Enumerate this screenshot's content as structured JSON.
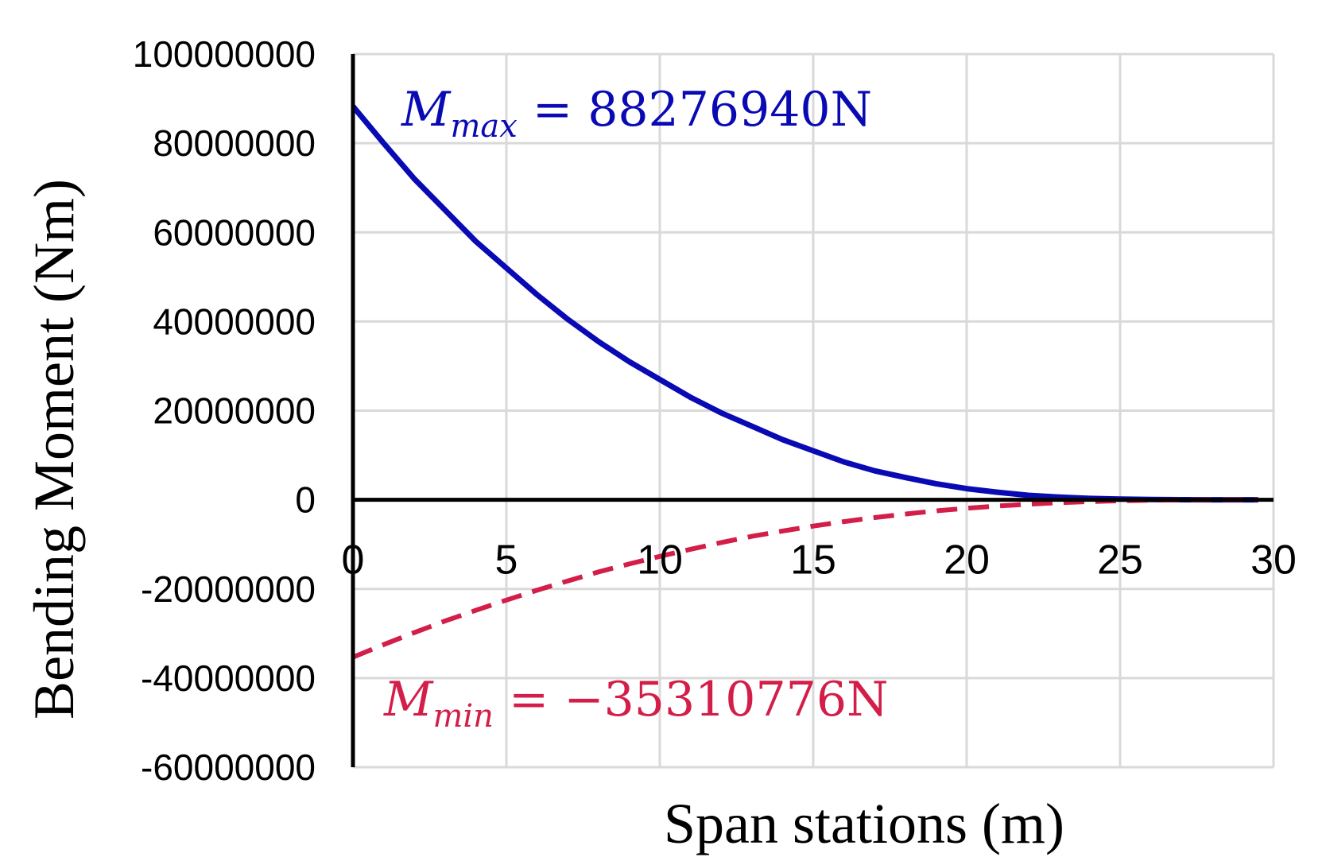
{
  "chart_data": {
    "type": "line",
    "xlabel": "Span stations (m)",
    "ylabel": "Bending Moment (Nm)",
    "xlim": [
      0,
      30
    ],
    "ylim": [
      -60000000,
      100000000
    ],
    "x_ticks": [
      "0",
      "5",
      "10",
      "15",
      "20",
      "25",
      "30"
    ],
    "y_ticks": [
      "100000000",
      "80000000",
      "60000000",
      "40000000",
      "20000000",
      "0",
      "-20000000",
      "-40000000",
      "-60000000"
    ],
    "grid": true,
    "annotations": {
      "max": {
        "symbol": "M",
        "subscript": "max",
        "text": " = 88276940N",
        "color": "#0a0ab4"
      },
      "min": {
        "symbol": "M",
        "subscript": "min",
        "text": " = −35310776N",
        "color": "#d21e48"
      }
    },
    "series": [
      {
        "color": "#0a0ab4",
        "style": "solid",
        "x": [
          0,
          1,
          2,
          3,
          4,
          5,
          6,
          7,
          8,
          9,
          10,
          11,
          12,
          13,
          14,
          15,
          16,
          17,
          18,
          19,
          20,
          21,
          22,
          23,
          24,
          25,
          26,
          27,
          28,
          29,
          29.5
        ],
        "y": [
          88276940,
          80000000,
          72000000,
          65000000,
          58000000,
          52000000,
          46000000,
          40500000,
          35500000,
          31000000,
          27000000,
          23000000,
          19500000,
          16500000,
          13500000,
          11000000,
          8500000,
          6500000,
          5000000,
          3600000,
          2500000,
          1700000,
          1000000,
          600000,
          300000,
          150000,
          60000,
          20000,
          5000,
          0,
          0
        ]
      },
      {
        "color": "#d21e48",
        "style": "dashed",
        "x": [
          0,
          1,
          2,
          3,
          4,
          5,
          6,
          7,
          8,
          9,
          10,
          11,
          12,
          13,
          14,
          15,
          16,
          17,
          18,
          19,
          20,
          21,
          22,
          23,
          24,
          25,
          26,
          27,
          28,
          29,
          29.5
        ],
        "y": [
          -35310776,
          -32500000,
          -29800000,
          -27200000,
          -24800000,
          -22500000,
          -20300000,
          -18200000,
          -16200000,
          -14400000,
          -12700000,
          -11100000,
          -9600000,
          -8200000,
          -7000000,
          -5900000,
          -4900000,
          -4000000,
          -3200000,
          -2500000,
          -1900000,
          -1400000,
          -1000000,
          -650000,
          -400000,
          -220000,
          -100000,
          -40000,
          -10000,
          0,
          0
        ]
      }
    ]
  }
}
